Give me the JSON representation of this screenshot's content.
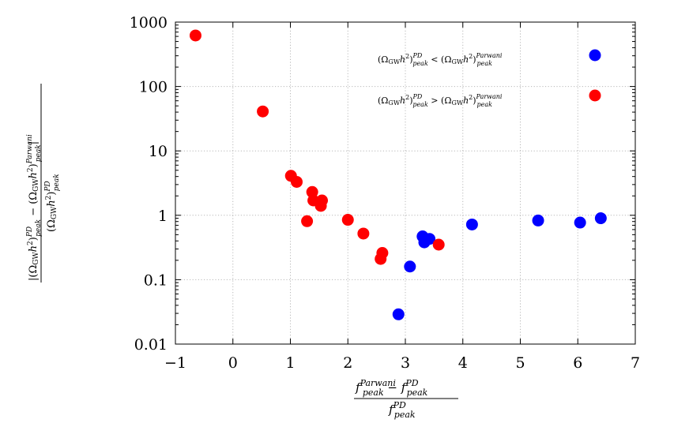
{
  "chart_data": {
    "type": "scatter",
    "title": "",
    "xlabel": "(f_peak^Parwani − f_peak^PD) / f_peak^PD",
    "ylabel": "|(Ω_GW h²)_peak^PD − (Ω_GW h²)_peak^Parwani| / (Ω_GW h²)_peak^PD",
    "xlim": [
      -1,
      7
    ],
    "ylim": [
      0.01,
      1000
    ],
    "yscale": "log",
    "grid": true,
    "legend_position": "top-right",
    "x_ticks": [
      "−1",
      "0",
      "1",
      "2",
      "3",
      "4",
      "5",
      "6",
      "7"
    ],
    "x_tick_values": [
      -1,
      0,
      1,
      2,
      3,
      4,
      5,
      6,
      7
    ],
    "y_ticks": [
      "0.01",
      "0.1",
      "1",
      "10",
      "100",
      "1000"
    ],
    "y_tick_values": [
      0.01,
      0.1,
      1,
      10,
      100,
      1000
    ],
    "series": [
      {
        "name": "(Ω_GW h²)_peak^PD < (Ω_GW h²)_peak^Parwani",
        "color": "#0000ff",
        "points": [
          {
            "x": 2.88,
            "y": 0.029
          },
          {
            "x": 3.08,
            "y": 0.16
          },
          {
            "x": 3.3,
            "y": 0.47
          },
          {
            "x": 3.33,
            "y": 0.38
          },
          {
            "x": 3.42,
            "y": 0.43
          },
          {
            "x": 4.16,
            "y": 0.72
          },
          {
            "x": 5.31,
            "y": 0.83
          },
          {
            "x": 6.04,
            "y": 0.77
          },
          {
            "x": 6.4,
            "y": 0.9
          }
        ]
      },
      {
        "name": "(Ω_GW h²)_peak^PD > (Ω_GW h²)_peak^Parwani",
        "color": "#ff0000",
        "points": [
          {
            "x": -0.65,
            "y": 620
          },
          {
            "x": 0.52,
            "y": 41
          },
          {
            "x": 1.01,
            "y": 4.1
          },
          {
            "x": 1.11,
            "y": 3.3
          },
          {
            "x": 1.29,
            "y": 0.81
          },
          {
            "x": 1.38,
            "y": 2.3
          },
          {
            "x": 1.4,
            "y": 1.7
          },
          {
            "x": 1.53,
            "y": 1.4
          },
          {
            "x": 1.55,
            "y": 1.7
          },
          {
            "x": 2.0,
            "y": 0.85
          },
          {
            "x": 2.27,
            "y": 0.52
          },
          {
            "x": 2.57,
            "y": 0.21
          },
          {
            "x": 2.6,
            "y": 0.26
          },
          {
            "x": 3.58,
            "y": 0.35
          }
        ]
      }
    ]
  }
}
